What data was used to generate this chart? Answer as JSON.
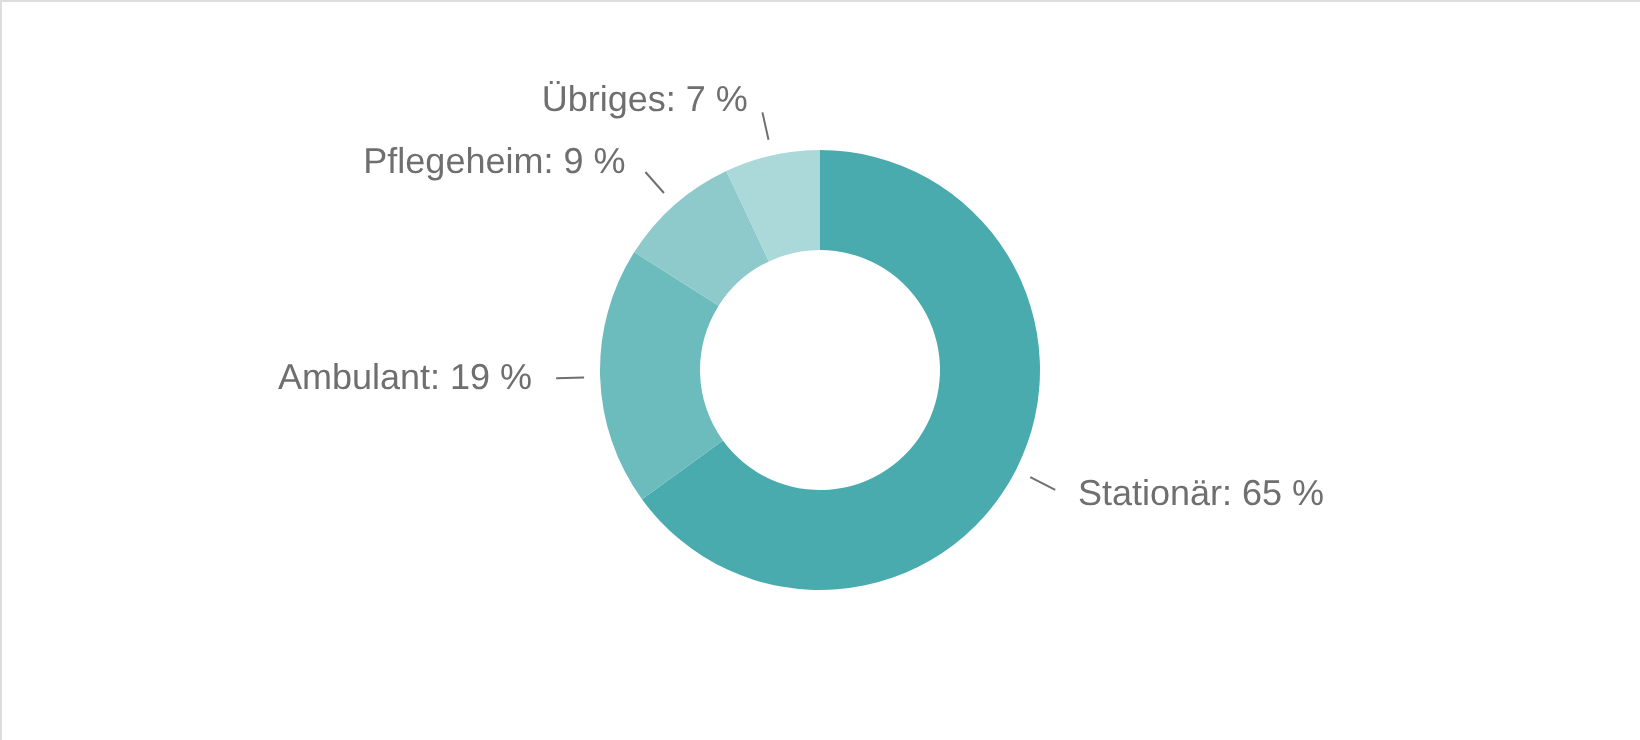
{
  "chart_data": {
    "type": "donut",
    "categories": [
      "Stationär",
      "Ambulant",
      "Pflegeheim",
      "Übriges"
    ],
    "values": [
      65,
      19,
      9,
      7
    ],
    "value_labels": [
      "65 %",
      "19 %",
      "9 %",
      "7 %"
    ],
    "colors": [
      "#4aabaf",
      "#6cbcbe",
      "#8ecacb",
      "#abd8d9"
    ]
  }
}
